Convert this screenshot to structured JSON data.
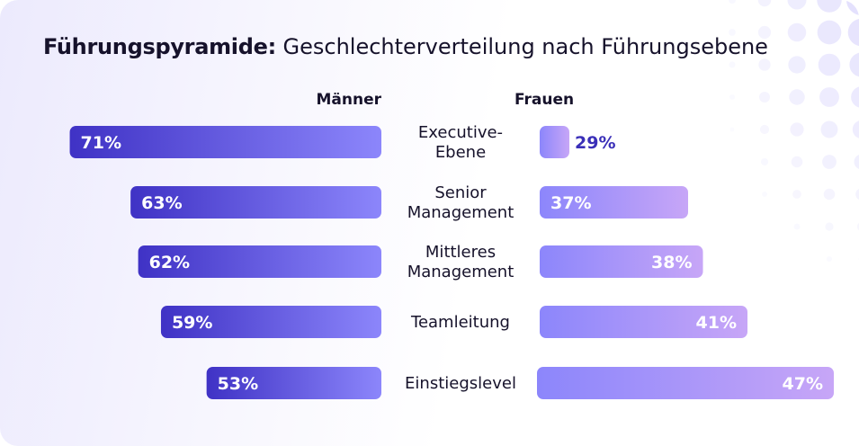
{
  "title_bold": "Führungspyramide:",
  "title_rest": " Geschlechterverteilung nach Führungsebene",
  "colors": {
    "men_dark": "#3f32c5",
    "men_light": "#8c86fb",
    "women_dark": "#8c86fb",
    "women_light": "#c7a6f7",
    "small_label": "#3a2fb8"
  },
  "chart_data": {
    "type": "bar",
    "orientation": "horizontal-diverging",
    "title": "Führungspyramide: Geschlechterverteilung nach Führungsebene",
    "categories": [
      [
        "Executive-",
        "Ebene"
      ],
      [
        "Senior",
        "Management"
      ],
      [
        "Mittleres",
        "Management"
      ],
      [
        "Teamleitung"
      ],
      [
        "Einstiegslevel"
      ]
    ],
    "series": [
      {
        "name": "Männer",
        "values": [
          71,
          63,
          62,
          59,
          53
        ],
        "unit": "%"
      },
      {
        "name": "Frauen",
        "values": [
          29,
          37,
          38,
          41,
          47
        ],
        "unit": "%"
      }
    ],
    "grid": false
  }
}
